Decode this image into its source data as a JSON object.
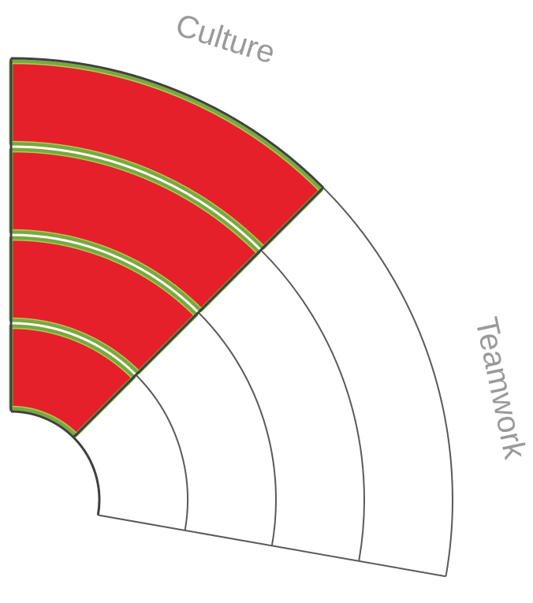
{
  "labels": {
    "top_sector": "Culture",
    "right_sector": "Teamwork"
  },
  "colors": {
    "fill": "#e5202a",
    "band_border": "#7aa83c",
    "band_highlight": "#a8cf5a",
    "grid_line": "#5a5a5a",
    "label_text": "#9a9a9a"
  },
  "sectors": [
    {
      "name": "Culture",
      "levels_total": 4,
      "levels_filled": 4
    },
    {
      "name": "Teamwork",
      "levels_total": 4,
      "levels_filled": 0
    }
  ]
}
